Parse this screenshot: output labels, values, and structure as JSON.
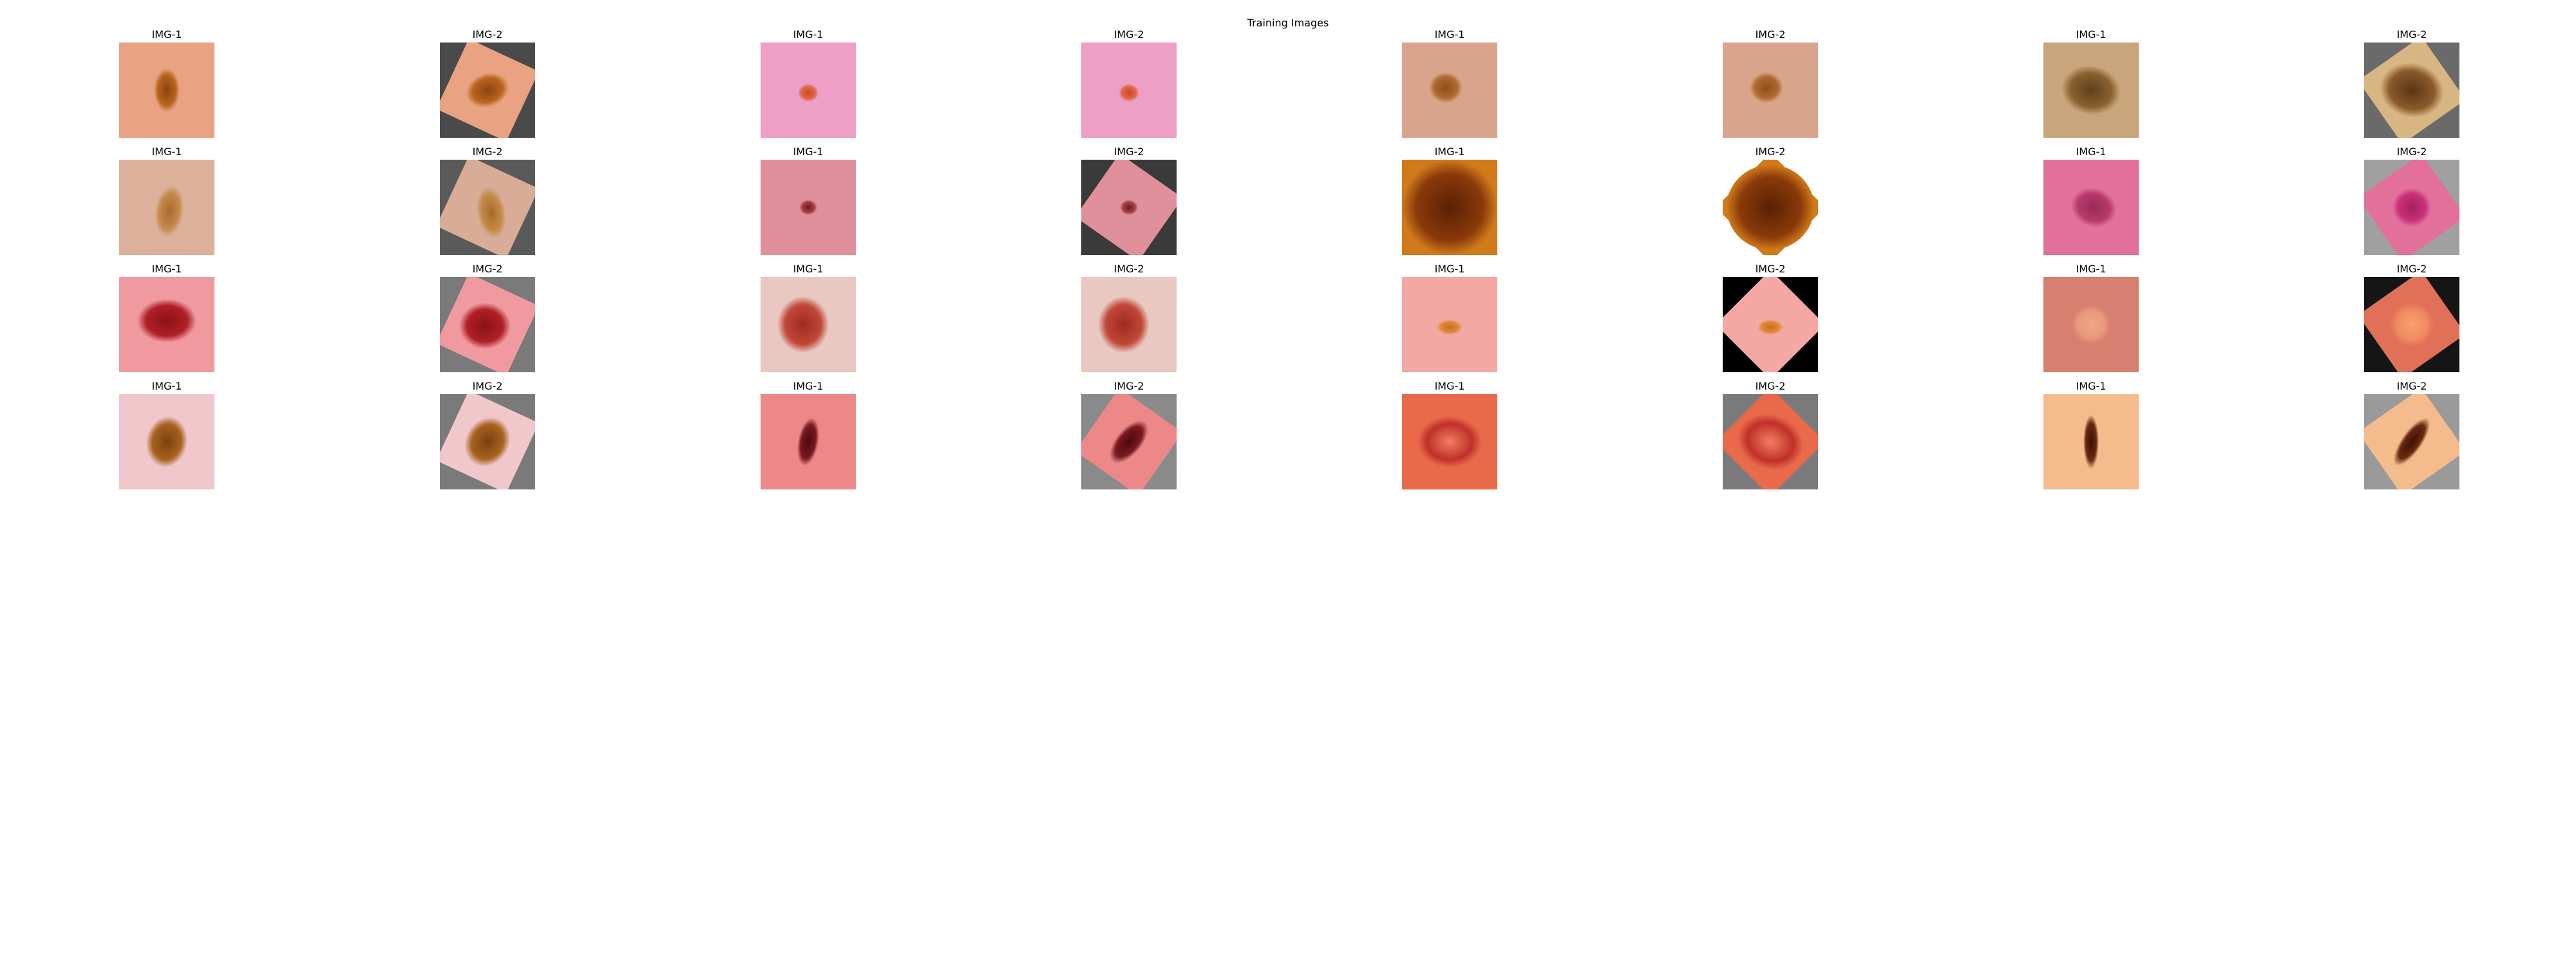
{
  "figure": {
    "title": "Training Images"
  },
  "grid": {
    "rows": [
      {
        "cells": [
          {
            "label": "IMG-1",
            "skin": "#e9a382",
            "lesion": "#b8641c",
            "lesion_core": "#8a4512",
            "bg": "#ffffff"
          },
          {
            "label": "IMG-2",
            "skin": "#e9a382",
            "lesion": "#b8641c",
            "lesion_core": "#8a4512",
            "bg": "#4a4a4a"
          },
          {
            "label": "IMG-1",
            "skin": "#ee9fc6",
            "lesion": "#e2674a",
            "lesion_core": "#c84a22",
            "bg": "#ffffff"
          },
          {
            "label": "IMG-2",
            "skin": "#ee9fc6",
            "lesion": "#e2674a",
            "lesion_core": "#c84a22",
            "bg": "#ffffff"
          },
          {
            "label": "IMG-1",
            "skin": "#d9a48c",
            "lesion": "#b06a2e",
            "lesion_core": "#8f4e1e",
            "bg": "#ffffff"
          },
          {
            "label": "IMG-2",
            "skin": "#d9a48c",
            "lesion": "#b06a2e",
            "lesion_core": "#8f4e1e",
            "bg": "#ffffff"
          },
          {
            "label": "IMG-1",
            "skin": "#c9a57c",
            "lesion": "#8a6230",
            "lesion_core": "#5e3f1c",
            "bg": "#ffffff"
          },
          {
            "label": "IMG-2",
            "skin": "#d8b683",
            "lesion": "#8a5a2a",
            "lesion_core": "#5a3514",
            "bg": "#6a6a6a"
          }
        ]
      },
      {
        "cells": [
          {
            "label": "IMG-1",
            "skin": "#dcb09a",
            "lesion": "#c48a4a",
            "lesion_core": "#a86a2a",
            "bg": "#ffffff"
          },
          {
            "label": "IMG-2",
            "skin": "#d8ac96",
            "lesion": "#c48a4a",
            "lesion_core": "#a86a2a",
            "bg": "#5a5a5a"
          },
          {
            "label": "IMG-1",
            "skin": "#e0909a",
            "lesion": "#a8404a",
            "lesion_core": "#6a1a22",
            "bg": "#ffffff"
          },
          {
            "label": "IMG-2",
            "skin": "#e0909a",
            "lesion": "#a8404a",
            "lesion_core": "#6a1a22",
            "bg": "#3a3a3a"
          },
          {
            "label": "IMG-1",
            "skin": "#d07a1a",
            "lesion": "#8a3a0a",
            "lesion_core": "#5a2004",
            "bg": "#ffffff"
          },
          {
            "label": "IMG-2",
            "skin": "#d07a1a",
            "lesion": "#8a3a0a",
            "lesion_core": "#5a2004",
            "bg": "#ffffff"
          },
          {
            "label": "IMG-1",
            "skin": "#e2709a",
            "lesion": "#b83a6a",
            "lesion_core": "#9a2a55",
            "bg": "#ffffff"
          },
          {
            "label": "IMG-2",
            "skin": "#e2709a",
            "lesion": "#c8307a",
            "lesion_core": "#a82060",
            "bg": "#a0a0a0"
          }
        ]
      },
      {
        "cells": [
          {
            "label": "IMG-1",
            "skin": "#f09aa0",
            "lesion": "#b02028",
            "lesion_core": "#8a1018",
            "bg": "#ffffff"
          },
          {
            "label": "IMG-2",
            "skin": "#f09aa0",
            "lesion": "#b02028",
            "lesion_core": "#8a1018",
            "bg": "#7a7a7a"
          },
          {
            "label": "IMG-1",
            "skin": "#e8c8c0",
            "lesion": "#c04838",
            "lesion_core": "#a02a20",
            "bg": "#ffffff"
          },
          {
            "label": "IMG-2",
            "skin": "#e8c8c0",
            "lesion": "#c04838",
            "lesion_core": "#a02a20",
            "bg": "#ffffff"
          },
          {
            "label": "IMG-1",
            "skin": "#f4a8a4",
            "lesion": "#e08a3a",
            "lesion_core": "#c87020",
            "bg": "#ffffff"
          },
          {
            "label": "IMG-2",
            "skin": "#f4a8a4",
            "lesion": "#e08a3a",
            "lesion_core": "#c87020",
            "bg": "#000000"
          },
          {
            "label": "IMG-1",
            "skin": "#d88070",
            "lesion": "#e89a7a",
            "lesion_core": "#f0a888",
            "bg": "#ffffff"
          },
          {
            "label": "IMG-2",
            "skin": "#e07058",
            "lesion": "#f08a60",
            "lesion_core": "#f8a070",
            "bg": "#151515"
          }
        ]
      },
      {
        "cells": [
          {
            "label": "IMG-1",
            "skin": "#f0c8cc",
            "lesion": "#a8621e",
            "lesion_core": "#7a4010",
            "bg": "#ffffff"
          },
          {
            "label": "IMG-2",
            "skin": "#f0c8cc",
            "lesion": "#a8621e",
            "lesion_core": "#7a4010",
            "bg": "#7a7a7a"
          },
          {
            "label": "IMG-1",
            "skin": "#ec8888",
            "lesion": "#7a1a20",
            "lesion_core": "#4a0a10",
            "bg": "#ffffff"
          },
          {
            "label": "IMG-2",
            "skin": "#ec8888",
            "lesion": "#7a1a20",
            "lesion_core": "#4a0a10",
            "bg": "#8a8a8a"
          },
          {
            "label": "IMG-1",
            "skin": "#e86a4a",
            "lesion": "#c0302a",
            "lesion_core": "#f08060",
            "bg": "#ffffff"
          },
          {
            "label": "IMG-2",
            "skin": "#e86a4a",
            "lesion": "#c0302a",
            "lesion_core": "#f08060",
            "bg": "#7a7a7a"
          },
          {
            "label": "IMG-1",
            "skin": "#f4bc8c",
            "lesion": "#6a2a10",
            "lesion_core": "#3a1008",
            "bg": "#ffffff"
          },
          {
            "label": "IMG-2",
            "skin": "#f4bc8c",
            "lesion": "#6a2a10",
            "lesion_core": "#3a1008",
            "bg": "#9a9a9a"
          }
        ]
      }
    ]
  }
}
